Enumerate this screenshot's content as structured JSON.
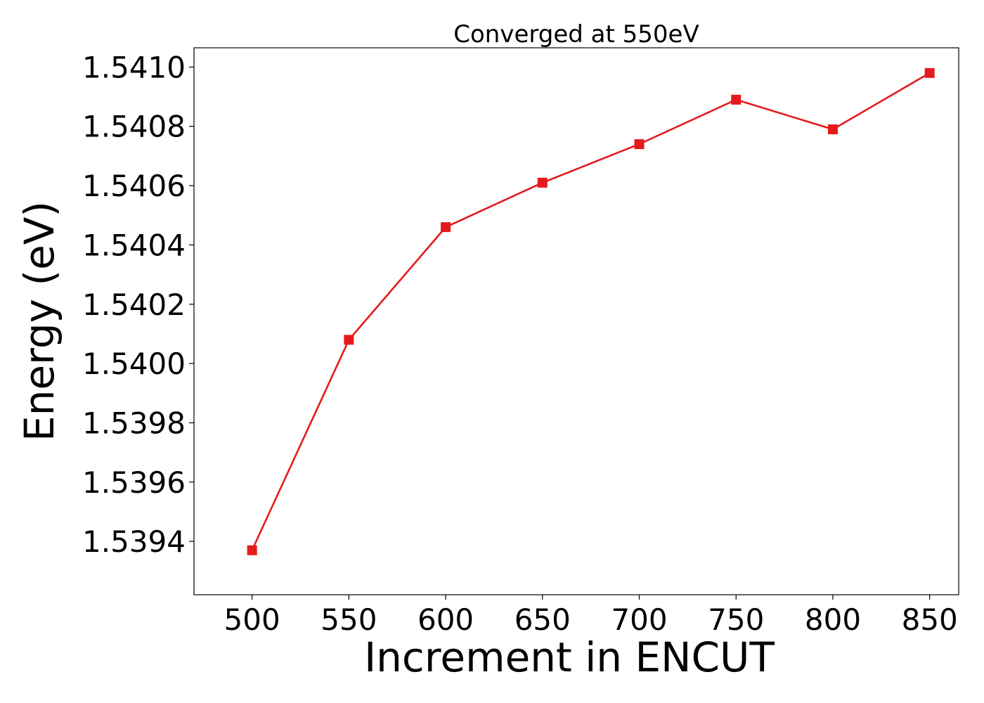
{
  "chart_data": {
    "type": "line",
    "title": "Converged at 550eV",
    "xlabel": "Increment in ENCUT",
    "ylabel": "Energy (eV)",
    "x": [
      500,
      550,
      600,
      650,
      700,
      750,
      800,
      850
    ],
    "series": [
      {
        "values": [
          1.53937,
          1.54008,
          1.54046,
          1.54061,
          1.54074,
          1.54089,
          1.54079,
          1.54098
        ]
      }
    ],
    "xlim": [
      470,
      865
    ],
    "ylim": [
      1.53922,
      1.541065
    ],
    "xticks": [
      500,
      550,
      600,
      650,
      700,
      750,
      800,
      850
    ],
    "xtick_labels": [
      "500",
      "550",
      "600",
      "650",
      "700",
      "750",
      "800",
      "850"
    ],
    "yticks": [
      1.5394,
      1.5396,
      1.5398,
      1.54,
      1.5402,
      1.5404,
      1.5406,
      1.5408,
      1.541
    ],
    "ytick_labels": [
      "1.5394",
      "1.5396",
      "1.5398",
      "1.5400",
      "1.5402",
      "1.5404",
      "1.5406",
      "1.5408",
      "1.5410"
    ],
    "marker": "square",
    "line_color": "#e41a1c",
    "grid": false,
    "legend": false
  }
}
